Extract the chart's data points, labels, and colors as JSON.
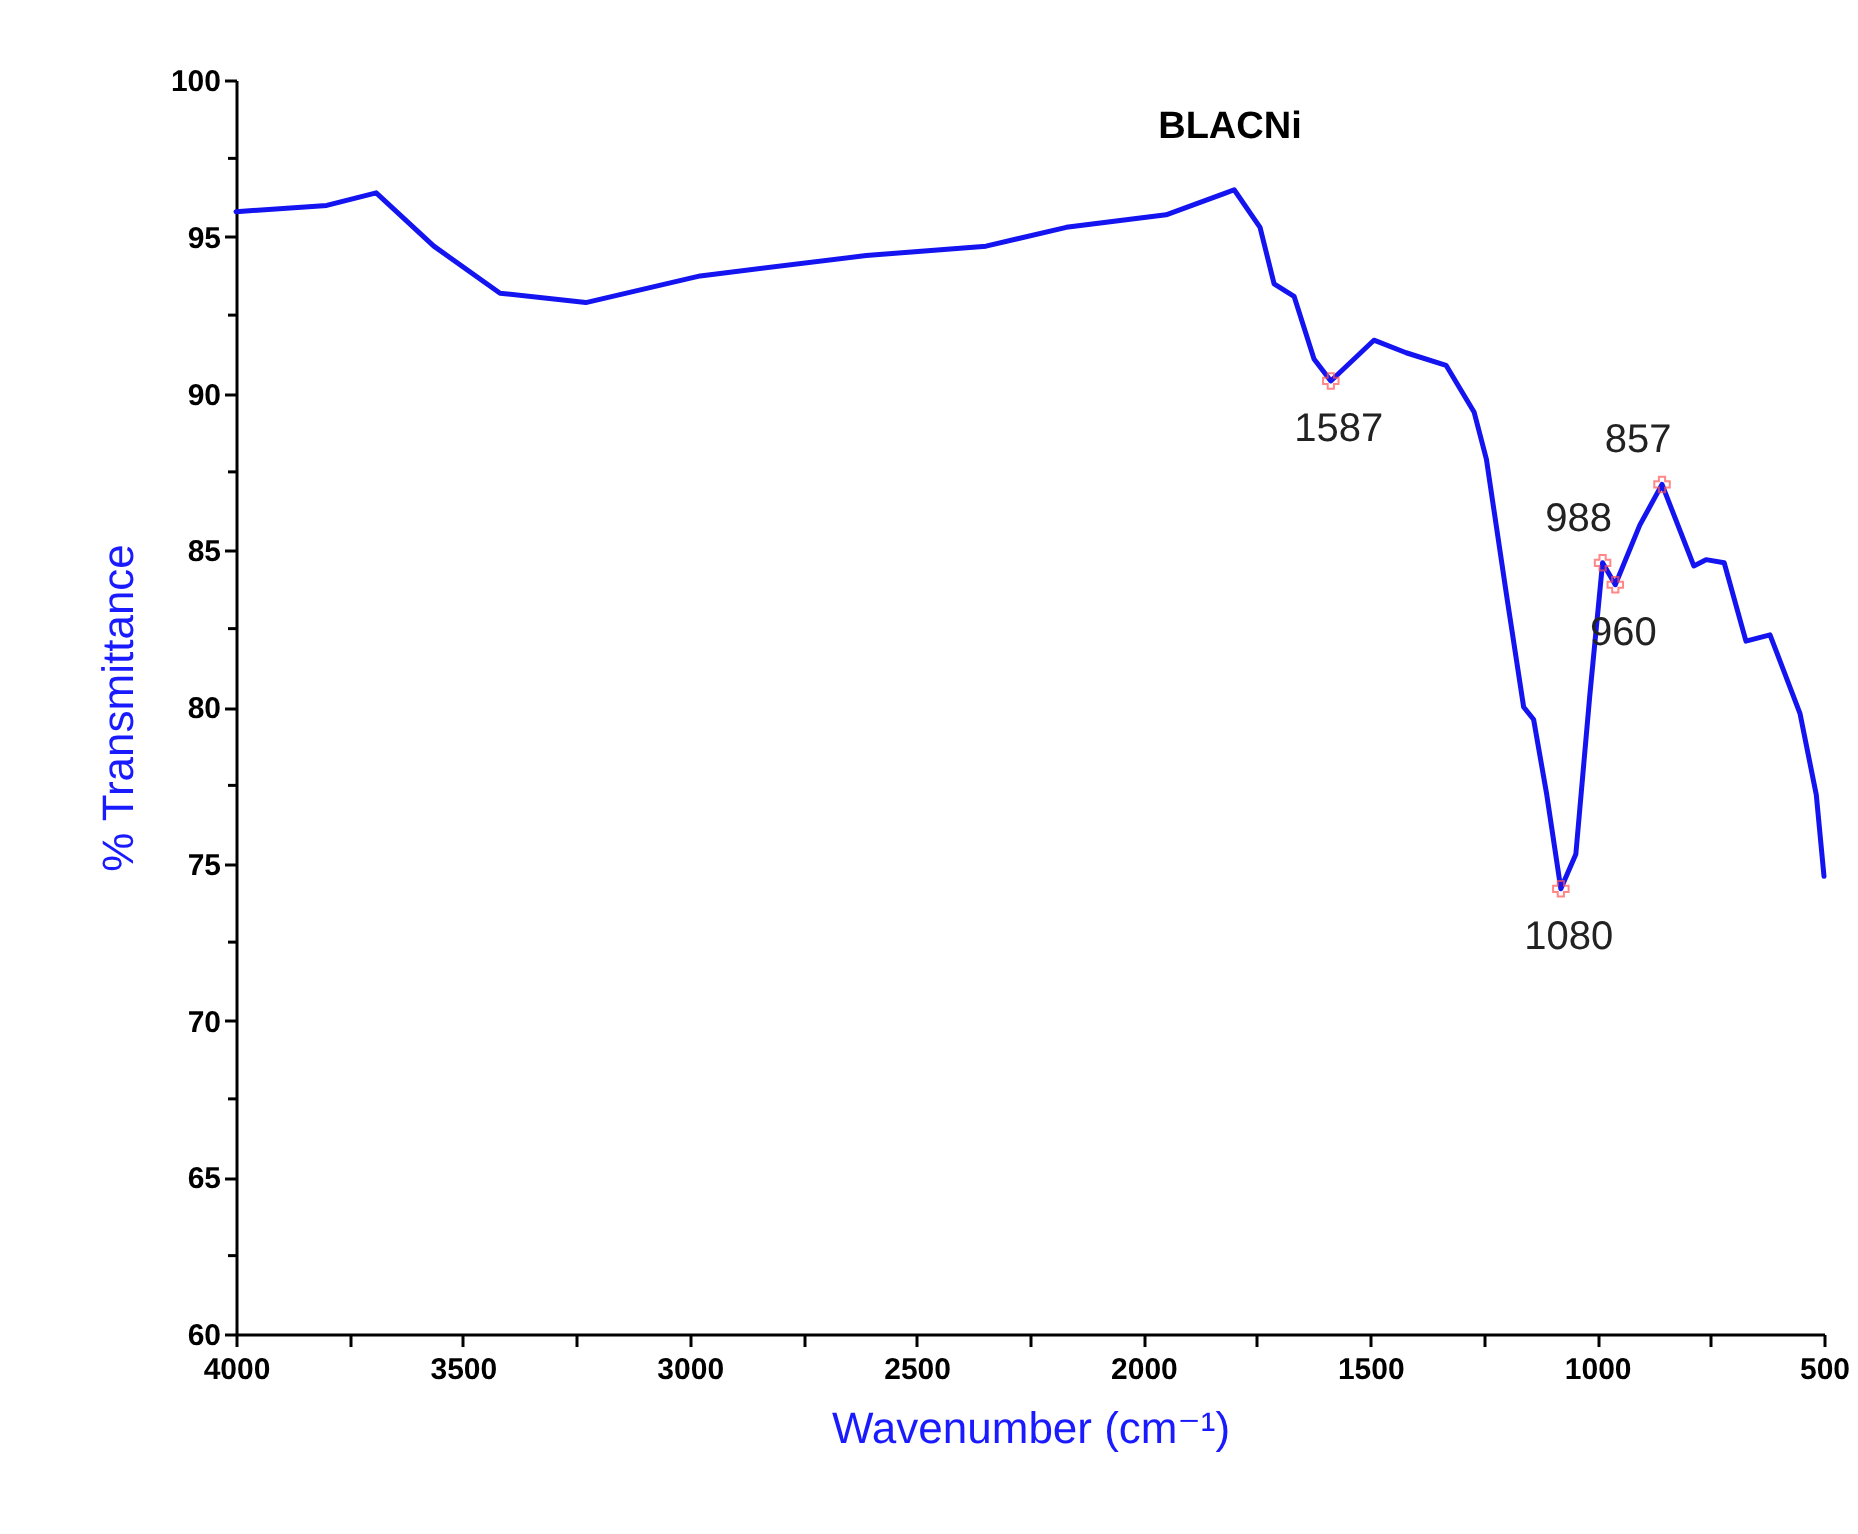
{
  "chart_data": {
    "type": "line",
    "title": "BLACNi",
    "xlabel": "Wavenumber (cm⁻¹)",
    "ylabel": "% Transmittance",
    "xlim": [
      4000,
      500
    ],
    "ylim": [
      60,
      100
    ],
    "xticks": [
      4000,
      {
        "value": 3750,
        "label": null
      },
      3500,
      {
        "value": 3250,
        "label": null
      },
      3000,
      {
        "value": 2750,
        "label": null
      },
      2500,
      {
        "value": 2250,
        "label": null
      },
      2000,
      {
        "value": 1750,
        "label": null
      },
      1500,
      {
        "value": 1250,
        "label": null
      },
      1000,
      {
        "value": 750,
        "label": null
      },
      500
    ],
    "yticks": [
      60,
      {
        "value": 62.5,
        "label": null
      },
      65,
      {
        "value": 67.5,
        "label": null
      },
      70,
      {
        "value": 72.5,
        "label": null
      },
      75,
      {
        "value": 77.5,
        "label": null
      },
      80,
      {
        "value": 82.5,
        "label": null
      },
      85,
      {
        "value": 87.5,
        "label": null
      },
      90,
      {
        "value": 92.5,
        "label": null
      },
      95,
      {
        "value": 97.5,
        "label": null
      },
      100
    ],
    "grid": false,
    "marker": "none",
    "line_style": "solid",
    "x": [
      4000,
      3800,
      3691,
      3564,
      3418,
      3229,
      2977,
      2611,
      2347,
      2170,
      1950,
      1818,
      1800,
      1743,
      1712,
      1668,
      1624,
      1587,
      1492,
      1421,
      1333,
      1271,
      1244,
      1200,
      1162,
      1140,
      1111,
      1080,
      1047,
      1016,
      988,
      960,
      906,
      857,
      787,
      760,
      720,
      672,
      619,
      553,
      517,
      500
    ],
    "series": [
      {
        "color": "#1414f0",
        "values": [
          95.8,
          96.0,
          96.4,
          94.7,
          93.2,
          92.9,
          93.75,
          94.4,
          94.7,
          95.3,
          95.7,
          96.4,
          96.5,
          95.3,
          93.5,
          93.1,
          91.1,
          90.4,
          91.7,
          91.3,
          90.9,
          89.4,
          87.9,
          83.6,
          80.0,
          79.6,
          77.2,
          74.2,
          75.3,
          80.4,
          84.6,
          83.9,
          85.8,
          87.1,
          84.5,
          84.7,
          84.6,
          82.1,
          82.3,
          79.8,
          77.2,
          74.6
        ]
      }
    ],
    "annotations": [
      {
        "text": "1587",
        "x": 1587,
        "y": 90.4
      },
      {
        "text": "1080",
        "x": 1080,
        "y": 74.2
      },
      {
        "text": "960",
        "x": 960,
        "y": 83.9
      },
      {
        "text": "988",
        "x": 988,
        "y": 84.6
      },
      {
        "text": "857",
        "x": 857,
        "y": 87.1
      }
    ]
  }
}
